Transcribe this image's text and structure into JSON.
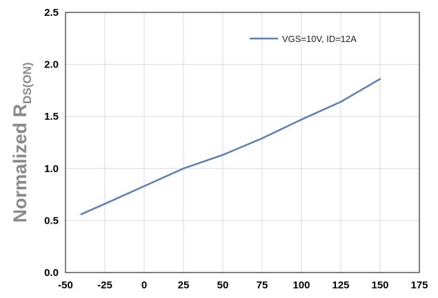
{
  "chart_data": {
    "type": "line",
    "title": "",
    "xlabel": "",
    "ylabel": "Normalized R",
    "ylabel_subscript": "DS(ON)",
    "xlim": [
      -50,
      175
    ],
    "ylim": [
      0.0,
      2.5
    ],
    "x_ticks": [
      "-50",
      "-25",
      "0",
      "25",
      "50",
      "75",
      "100",
      "125",
      "150",
      "175"
    ],
    "y_ticks": [
      "0.0",
      "0.5",
      "1.0",
      "1.5",
      "2.0",
      "2.5"
    ],
    "grid": true,
    "legend_position": "top-right",
    "series": [
      {
        "name": "VGS=10V, ID=12A",
        "color": "#5b7fb0",
        "x": [
          -40,
          -25,
          0,
          25,
          50,
          75,
          100,
          125,
          150
        ],
        "y": [
          0.56,
          0.66,
          0.83,
          1.0,
          1.13,
          1.29,
          1.47,
          1.64,
          1.86
        ]
      }
    ]
  }
}
